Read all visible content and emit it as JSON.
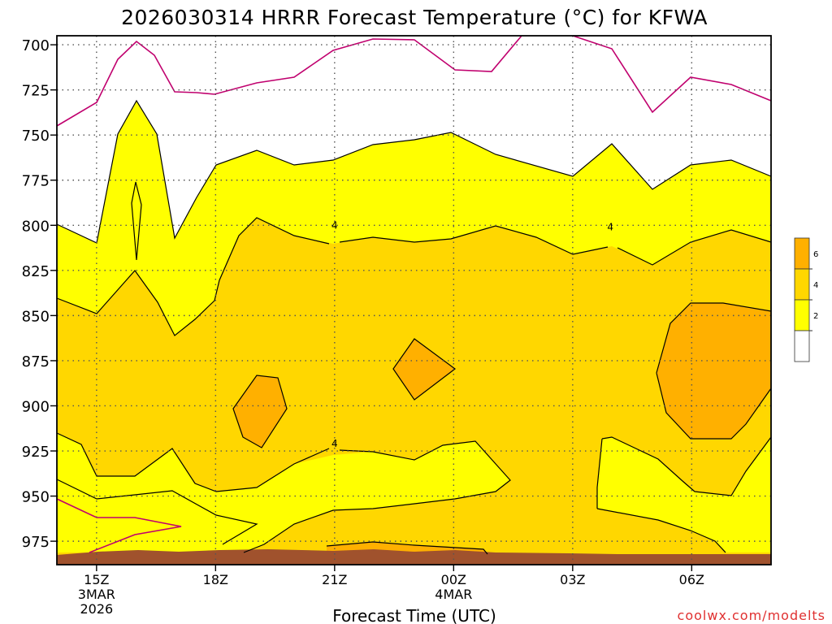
{
  "chart_data": {
    "type": "heatmap",
    "title": "2026030314 HRRR Forecast Temperature (°C) for KFWA",
    "xlabel": "Forecast Time (UTC)",
    "ylabel": "",
    "x_ticks": [
      {
        "label": "15Z",
        "hour_utc": 15,
        "sub": [
          "3MAR",
          "2026"
        ]
      },
      {
        "label": "18Z",
        "hour_utc": 18,
        "sub": []
      },
      {
        "label": "21Z",
        "hour_utc": 21,
        "sub": []
      },
      {
        "label": "00Z",
        "hour_utc": 24,
        "sub": [
          "4MAR"
        ]
      },
      {
        "label": "03Z",
        "hour_utc": 27,
        "sub": []
      },
      {
        "label": "06Z",
        "hour_utc": 30,
        "sub": []
      }
    ],
    "xlim_hours_utc": [
      14,
      32
    ],
    "y_ticks": [
      "700",
      "725",
      "750",
      "775",
      "800",
      "825",
      "850",
      "875",
      "900",
      "925",
      "950",
      "975"
    ],
    "ylim": [
      695,
      988
    ],
    "y_reversed": true,
    "grid": true,
    "contour_levels": [
      2,
      4,
      6
    ],
    "contour_labels": [
      {
        "text": "4",
        "hour_utc": 21,
        "pressure": 800
      },
      {
        "text": "4",
        "hour_utc": 27.95,
        "pressure": 801
      },
      {
        "text": "4",
        "hour_utc": 21,
        "pressure": 921
      }
    ],
    "colorbar": {
      "labels": [
        "6",
        "4",
        "2"
      ],
      "colors": [
        "#ffb000",
        "#ffd700",
        "#ffff00",
        "#ffffff"
      ]
    },
    "fill_colors": {
      "above_6": "#ffb000",
      "4_to_6": "#ffd700",
      "2_to_4": "#ffff00",
      "below_2": "#ffffff",
      "terrain": "#a0522d"
    },
    "contour_color": "#000000",
    "zero_line_color": "#c0006e"
  },
  "watermark": "coolwx.com/modelts"
}
